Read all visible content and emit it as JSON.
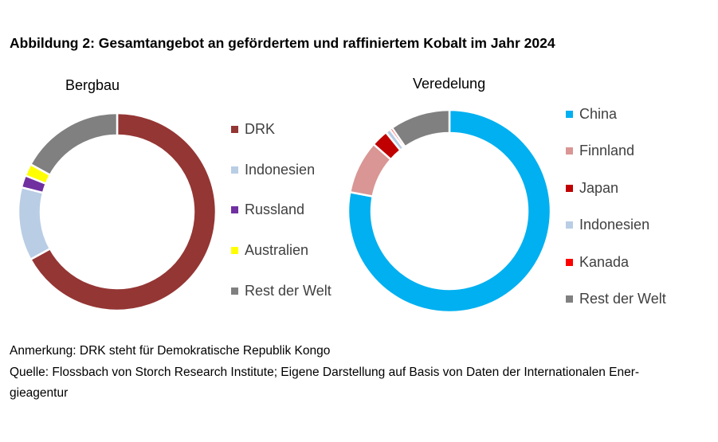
{
  "title": "Abbildung 2: Gesamtangebot an gefördertem und raffiniertem Kobalt im Jahr 2024",
  "chart_data": [
    {
      "type": "pie",
      "donut": true,
      "title": "Bergbau",
      "legend_position": "right",
      "categories": [
        "DRK",
        "Indonesien",
        "Russland",
        "Australien",
        "Rest der Welt"
      ],
      "values": [
        67,
        12,
        2,
        2,
        17
      ],
      "colors": [
        "#943634",
        "#B9CDE5",
        "#7030A0",
        "#FFFF00",
        "#808080"
      ]
    },
    {
      "type": "pie",
      "donut": true,
      "title": "Veredelung",
      "legend_position": "right",
      "categories": [
        "China",
        "Finnland",
        "Japan",
        "Indonesien",
        "Kanada",
        "Rest der Welt"
      ],
      "values": [
        78,
        8.5,
        2.7,
        0.8,
        0.4,
        9.6
      ],
      "colors": [
        "#00B0F0",
        "#D99694",
        "#C00000",
        "#B9CDE5",
        "#FF0000",
        "#808080"
      ]
    }
  ],
  "notes": [
    "Anmerkung: DRK steht für Demokratische Republik Kongo",
    "Quelle: Flossbach von Storch Research Institute; Eigene Darstellung auf Basis von Daten der Internationalen Ener-",
    "gieagentur"
  ]
}
